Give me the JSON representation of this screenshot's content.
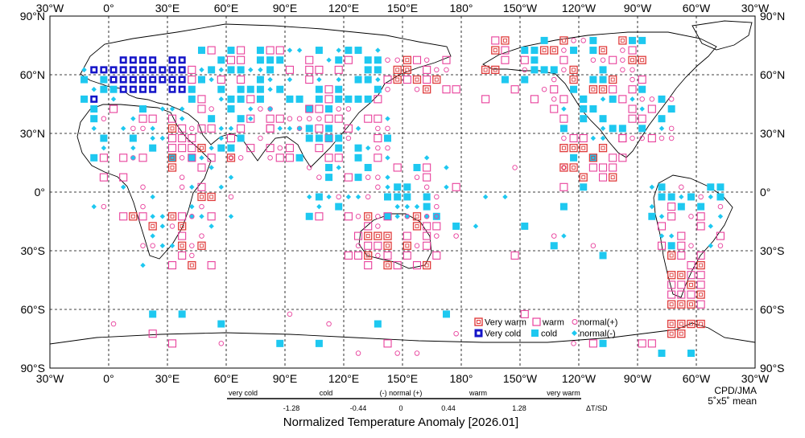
{
  "title": "Normalized Temperature Anomaly [2026.01]",
  "credit": "CPD/JMA",
  "grid_note": "5˚x5˚ mean",
  "colors": {
    "very_warm": "#e03c3c",
    "warm": "#e8409c",
    "very_cold": "#1414c8",
    "cold": "#1ec8f0",
    "land": "#000000"
  },
  "top_lon_labels": [
    "30°W",
    "0°",
    "30°E",
    "60°E",
    "90°E",
    "120°E",
    "150°E",
    "180°",
    "150°W",
    "120°W",
    "90°W",
    "60°W",
    "30°W"
  ],
  "bottom_lon_labels": [
    "30°W",
    "0°",
    "30°E",
    "60°E",
    "90°E",
    "120°E",
    "150°E",
    "180°",
    "150°W",
    "120°W",
    "90°W",
    "60°W",
    "30°W"
  ],
  "lat_labels": [
    "90°N",
    "60°N",
    "30°N",
    "0°",
    "30°S",
    "60°S",
    "90°S"
  ],
  "legend": {
    "very_warm": "Very warm",
    "warm": "warm",
    "normal_plus": "normal(+)",
    "very_cold": "Very cold",
    "cold": "cold",
    "normal_minus": "normal(-)"
  },
  "scale": {
    "categories": [
      "very cold",
      "cold",
      "(-) normal (+)",
      "warm",
      "very warm"
    ],
    "ticks": [
      "-1.28",
      "-0.44",
      "0",
      "0.44",
      "1.28"
    ],
    "unit": "ΔT/SD"
  }
}
